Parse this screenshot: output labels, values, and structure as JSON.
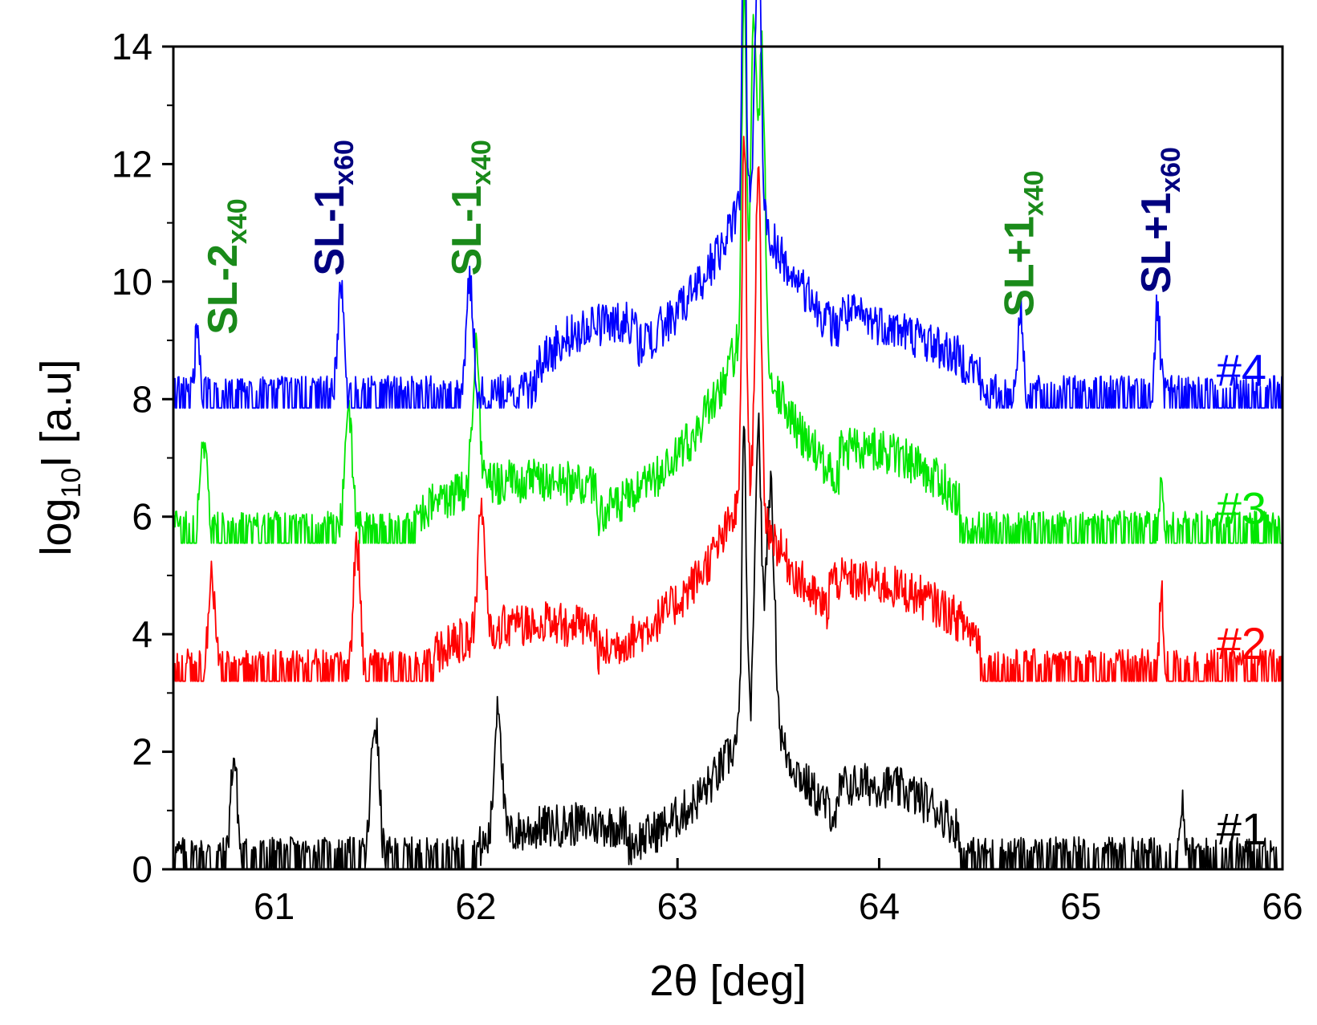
{
  "chart_data": {
    "type": "line",
    "title": "",
    "xlabel": "2θ [deg]",
    "ylabel_main": "log",
    "ylabel_sub": "10",
    "ylabel_tail": "I [a.u]",
    "xlim": [
      60.5,
      66
    ],
    "ylim": [
      0,
      14
    ],
    "xticks": [
      61,
      62,
      63,
      64,
      65,
      66
    ],
    "yticks": [
      0,
      2,
      4,
      6,
      8,
      10,
      12,
      14
    ],
    "colors": {
      "s1": "#000000",
      "s2": "#ff0000",
      "s3": "#00e600",
      "s4": "#0000ff",
      "annot_green": "#1a8a1a",
      "annot_navy": "#000080"
    },
    "series": [
      {
        "name": "#1",
        "label": "#1",
        "color": "#000000",
        "baseline": 0.0,
        "peaks": [
          {
            "x": 60.8,
            "height": 1.9,
            "width": 0.025
          },
          {
            "x": 61.5,
            "height": 2.5,
            "width": 0.03
          },
          {
            "x": 62.11,
            "height": 2.4,
            "width": 0.025
          },
          {
            "x": 63.33,
            "height": 5.0,
            "width": 0.015
          },
          {
            "x": 63.4,
            "height": 4.6,
            "width": 0.02
          },
          {
            "x": 63.46,
            "height": 4.0,
            "width": 0.03
          },
          {
            "x": 65.5,
            "height": 1.2,
            "width": 0.015
          }
        ],
        "humps": [
          {
            "from": 62.0,
            "to": 62.75,
            "level": 0.6
          },
          {
            "from": 63.8,
            "to": 64.4,
            "level": 1.0
          }
        ],
        "broad": {
          "center": 63.4,
          "height": 3.0,
          "width": 0.33
        }
      },
      {
        "name": "#2",
        "label": "#2",
        "color": "#ff0000",
        "baseline": 3.2,
        "peaks": [
          {
            "x": 60.69,
            "height": 1.7,
            "width": 0.025
          },
          {
            "x": 61.41,
            "height": 2.3,
            "width": 0.025
          },
          {
            "x": 62.03,
            "height": 2.2,
            "width": 0.025
          },
          {
            "x": 63.33,
            "height": 6.2,
            "width": 0.015
          },
          {
            "x": 63.4,
            "height": 5.7,
            "width": 0.02
          },
          {
            "x": 65.4,
            "height": 1.4,
            "width": 0.015
          }
        ],
        "humps": [
          {
            "from": 61.8,
            "to": 62.6,
            "level": 0.8
          },
          {
            "from": 63.75,
            "to": 64.5,
            "level": 1.1
          }
        ],
        "broad": {
          "center": 63.35,
          "height": 3.4,
          "width": 0.38
        }
      },
      {
        "name": "#3",
        "label": "#3",
        "color": "#00e600",
        "baseline": 5.55,
        "peaks": [
          {
            "x": 60.65,
            "height": 1.8,
            "width": 0.025
          },
          {
            "x": 61.37,
            "height": 2.1,
            "width": 0.03
          },
          {
            "x": 62.0,
            "height": 2.3,
            "width": 0.025
          },
          {
            "x": 63.33,
            "height": 6.0,
            "width": 0.015
          },
          {
            "x": 63.38,
            "height": 5.4,
            "width": 0.02
          },
          {
            "x": 63.42,
            "height": 5.1,
            "width": 0.02
          },
          {
            "x": 65.4,
            "height": 1.2,
            "width": 0.015
          }
        ],
        "humps": [
          {
            "from": 61.7,
            "to": 62.6,
            "level": 0.9
          },
          {
            "from": 63.8,
            "to": 64.4,
            "level": 1.0
          }
        ],
        "broad": {
          "center": 63.35,
          "height": 3.9,
          "width": 0.36
        }
      },
      {
        "name": "#4",
        "label": "#4",
        "color": "#0000ff",
        "baseline": 7.85,
        "peaks": [
          {
            "x": 60.62,
            "height": 1.3,
            "width": 0.02
          },
          {
            "x": 61.33,
            "height": 1.9,
            "width": 0.025
          },
          {
            "x": 61.97,
            "height": 2.0,
            "width": 0.025
          },
          {
            "x": 63.33,
            "height": 6.0,
            "width": 0.012
          },
          {
            "x": 63.4,
            "height": 4.8,
            "width": 0.02
          },
          {
            "x": 64.7,
            "height": 1.5,
            "width": 0.02
          },
          {
            "x": 65.38,
            "height": 1.6,
            "width": 0.02
          }
        ],
        "humps": [
          {
            "from": 62.3,
            "to": 62.8,
            "level": 0.8
          },
          {
            "from": 63.8,
            "to": 64.5,
            "level": 0.7
          }
        ],
        "broad": {
          "center": 63.35,
          "height": 3.8,
          "width": 0.42
        }
      }
    ],
    "annotations": [
      {
        "text": "SL-2",
        "sub": "x40",
        "x": 60.75,
        "y": 9.1,
        "color": "annot_green"
      },
      {
        "text": "SL-1",
        "sub": "x60",
        "x": 61.28,
        "y": 10.1,
        "color": "annot_navy"
      },
      {
        "text": "SL-1",
        "sub": "x40",
        "x": 61.96,
        "y": 10.1,
        "color": "annot_green"
      },
      {
        "text": "SL+1",
        "sub": "x40",
        "x": 64.7,
        "y": 9.4,
        "color": "annot_green"
      },
      {
        "text": "SL+1",
        "sub": "x60",
        "x": 65.38,
        "y": 9.8,
        "color": "annot_navy"
      }
    ],
    "series_labels": [
      {
        "text": "#4",
        "y": 8.5,
        "color": "s4"
      },
      {
        "text": "#3",
        "y": 6.15,
        "color": "s3"
      },
      {
        "text": "#2",
        "y": 3.85,
        "color": "s2"
      },
      {
        "text": "#1",
        "y": 0.7,
        "color": "s1"
      }
    ]
  }
}
